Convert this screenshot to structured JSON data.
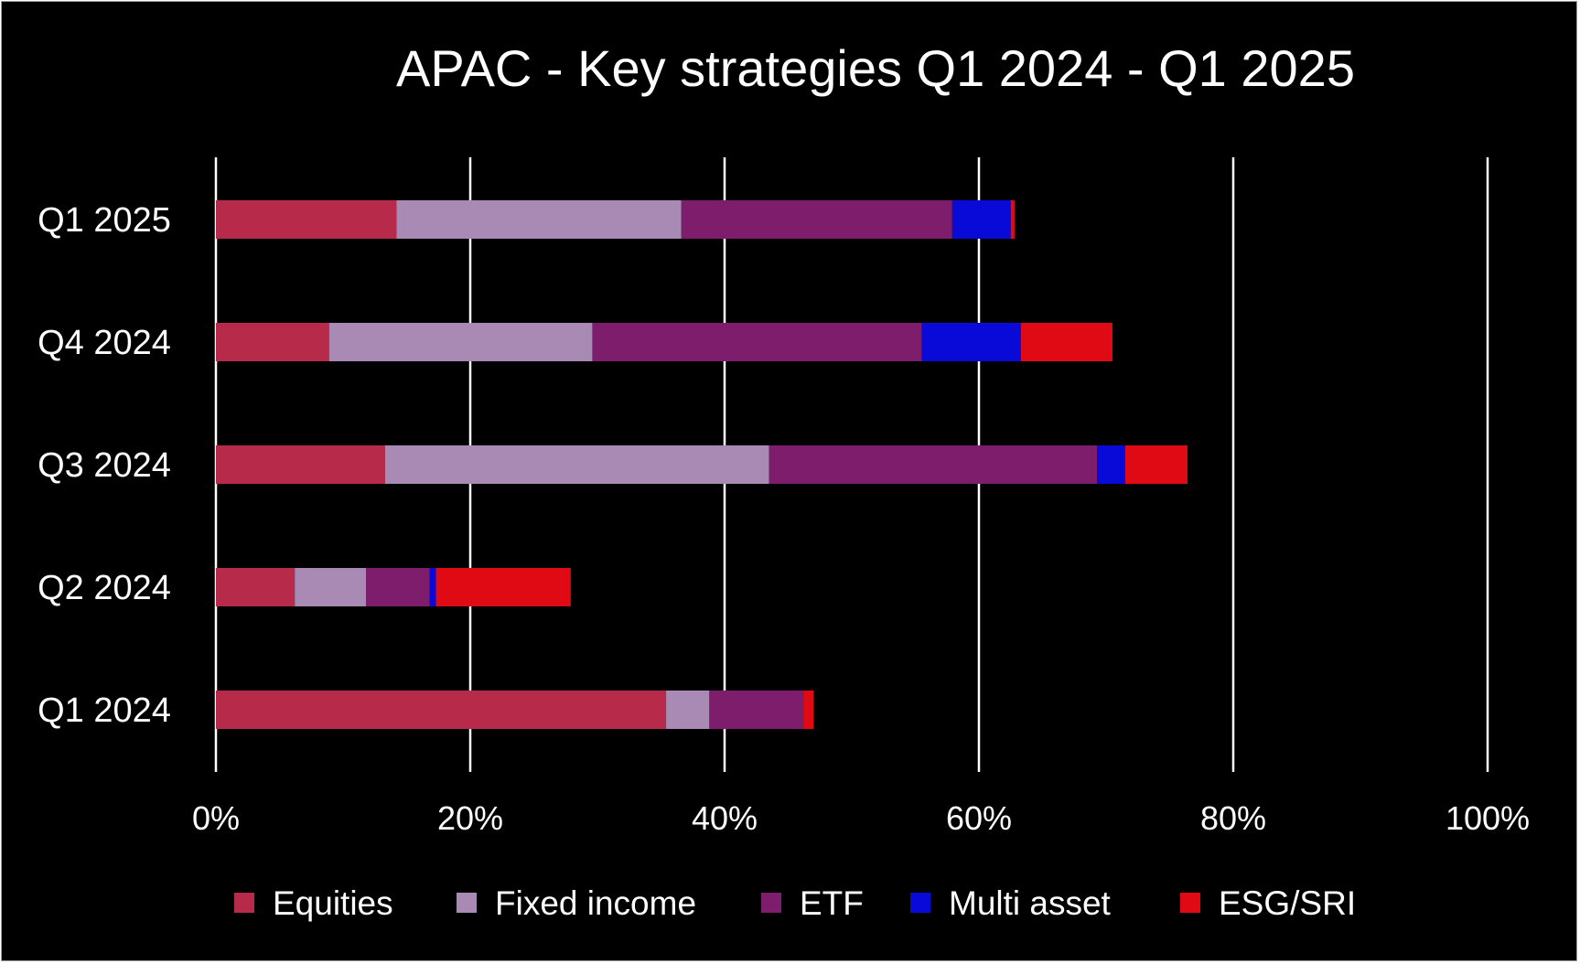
{
  "chart_data": {
    "type": "bar",
    "orientation": "horizontal",
    "stacked": true,
    "title": "APAC - Key strategies Q1 2024 - Q1 2025",
    "categories": [
      "Q1 2025",
      "Q4 2024",
      "Q3 2024",
      "Q2 2024",
      "Q1 2024"
    ],
    "xlim": [
      0,
      100
    ],
    "x_ticks": [
      "0%",
      "20%",
      "40%",
      "60%",
      "80%",
      "100%"
    ],
    "grid": true,
    "legend_position": "bottom",
    "series": [
      {
        "name": "Equities",
        "color": "#B82A4A",
        "values": [
          14.2,
          8.9,
          13.3,
          6.2,
          35.4
        ]
      },
      {
        "name": "Fixed income",
        "color": "#A98AB5",
        "values": [
          22.4,
          20.7,
          30.2,
          5.6,
          3.4
        ]
      },
      {
        "name": "ETF",
        "color": "#7E1D6C",
        "values": [
          21.3,
          25.9,
          25.8,
          5.0,
          7.4
        ]
      },
      {
        "name": "Multi asset",
        "color": "#0A0AD8",
        "values": [
          4.6,
          7.8,
          2.2,
          0.5,
          0.0
        ]
      },
      {
        "name": "ESG/SRI",
        "color": "#E00A14",
        "values": [
          0.3,
          7.2,
          4.9,
          10.6,
          0.8
        ]
      }
    ]
  }
}
